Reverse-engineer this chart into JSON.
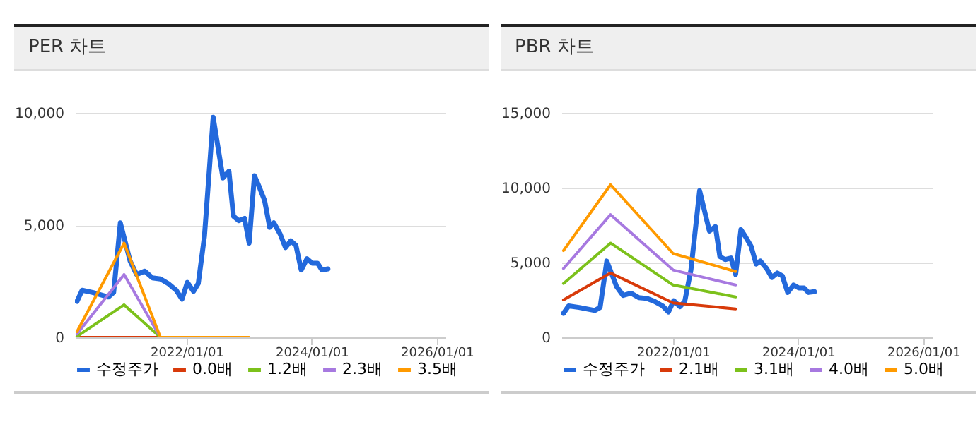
{
  "chart_data": [
    {
      "type": "line",
      "title": "PER 차트",
      "grid": "y",
      "legend": "bottom",
      "xlim": [
        "2020-03-20",
        "2026-02-20"
      ],
      "ylim": [
        0,
        10000
      ],
      "xticks": [
        {
          "value": "2022-01-01",
          "label": "2022/01/01"
        },
        {
          "value": "2024-01-01",
          "label": "2024/01/01"
        },
        {
          "value": "2026-01-01",
          "label": "2026/01/01"
        }
      ],
      "yticks": [
        {
          "value": 0,
          "label": "0"
        },
        {
          "value": 5000,
          "label": "5,000"
        },
        {
          "value": 10000,
          "label": "10,000"
        }
      ],
      "series": [
        {
          "name": "수정주가",
          "color": "#2369dc",
          "x": [
            "2020-04-01",
            "2020-05-01",
            "2020-07-01",
            "2020-10-01",
            "2020-11-01",
            "2020-12-10",
            "2021-02-05",
            "2021-03-15",
            "2021-05-01",
            "2021-06-15",
            "2021-08-01",
            "2021-09-15",
            "2021-11-01",
            "2021-12-05",
            "2022-01-05",
            "2022-02-10",
            "2022-03-10",
            "2022-04-15",
            "2022-06-05",
            "2022-08-01",
            "2022-09-05",
            "2022-10-01",
            "2022-11-01",
            "2022-12-05",
            "2023-01-01",
            "2023-02-01",
            "2023-03-01",
            "2023-04-01",
            "2023-05-01",
            "2023-05-25",
            "2023-07-01",
            "2023-08-01",
            "2023-09-01",
            "2023-10-01",
            "2023-11-01",
            "2023-12-05",
            "2024-01-05",
            "2024-02-05",
            "2024-03-01",
            "2024-04-05"
          ],
          "values": [
            1600,
            2100,
            2000,
            1800,
            2000,
            5100,
            3400,
            2800,
            2950,
            2650,
            2600,
            2400,
            2100,
            1700,
            2450,
            2050,
            2400,
            4500,
            9800,
            7100,
            7400,
            5400,
            5200,
            5300,
            4200,
            7200,
            6700,
            6100,
            4900,
            5100,
            4600,
            4000,
            4300,
            4100,
            3000,
            3500,
            3300,
            3300,
            3000,
            3050
          ]
        },
        {
          "name": "0.0배",
          "color": "#d83a0a",
          "x": [
            "2020-04-01",
            "2021-01-01",
            "2021-08-01"
          ],
          "values": [
            0,
            0,
            0
          ]
        },
        {
          "name": "1.2배",
          "color": "#7cc11b",
          "x": [
            "2020-04-01",
            "2021-01-01",
            "2021-08-01"
          ],
          "values": [
            40,
            1450,
            0
          ]
        },
        {
          "name": "2.3배",
          "color": "#a779e0",
          "x": [
            "2020-04-01",
            "2021-01-01",
            "2021-08-01"
          ],
          "values": [
            150,
            2800,
            0
          ]
        },
        {
          "name": "3.5배",
          "color": "#ff9a00",
          "x": [
            "2020-04-01",
            "2021-01-01",
            "2021-08-01",
            "2023-01-01"
          ],
          "values": [
            250,
            4200,
            0,
            0
          ]
        }
      ]
    },
    {
      "type": "line",
      "title": "PBR 차트",
      "grid": "y",
      "legend": "bottom",
      "xlim": [
        "2020-03-20",
        "2026-02-20"
      ],
      "ylim": [
        0,
        15000
      ],
      "xticks": [
        {
          "value": "2022-01-01",
          "label": "2022/01/01"
        },
        {
          "value": "2024-01-01",
          "label": "2024/01/01"
        },
        {
          "value": "2026-01-01",
          "label": "2026/01/01"
        }
      ],
      "yticks": [
        {
          "value": 0,
          "label": "0"
        },
        {
          "value": 5000,
          "label": "5,000"
        },
        {
          "value": 10000,
          "label": "10,000"
        },
        {
          "value": 15000,
          "label": "15,000"
        }
      ],
      "series": [
        {
          "name": "수정주가",
          "color": "#2369dc",
          "x": [
            "2020-04-01",
            "2020-05-01",
            "2020-07-01",
            "2020-10-01",
            "2020-11-01",
            "2020-12-10",
            "2021-02-05",
            "2021-03-15",
            "2021-05-01",
            "2021-06-15",
            "2021-08-01",
            "2021-09-15",
            "2021-11-01",
            "2021-12-05",
            "2022-01-05",
            "2022-02-10",
            "2022-03-10",
            "2022-04-15",
            "2022-06-05",
            "2022-08-01",
            "2022-09-05",
            "2022-10-01",
            "2022-11-01",
            "2022-12-05",
            "2023-01-01",
            "2023-02-01",
            "2023-03-01",
            "2023-04-01",
            "2023-05-01",
            "2023-05-25",
            "2023-07-01",
            "2023-08-01",
            "2023-09-01",
            "2023-10-01",
            "2023-11-01",
            "2023-12-05",
            "2024-01-05",
            "2024-02-05",
            "2024-03-01",
            "2024-04-05"
          ],
          "values": [
            1600,
            2100,
            2000,
            1800,
            2000,
            5100,
            3400,
            2800,
            2950,
            2650,
            2600,
            2400,
            2100,
            1700,
            2450,
            2050,
            2400,
            4500,
            9800,
            7100,
            7400,
            5400,
            5200,
            5300,
            4200,
            7200,
            6700,
            6100,
            4900,
            5100,
            4600,
            4000,
            4300,
            4100,
            3000,
            3500,
            3300,
            3300,
            3000,
            3050
          ]
        },
        {
          "name": "2.1배",
          "color": "#d83a0a",
          "x": [
            "2020-04-01",
            "2021-01-01",
            "2022-01-01",
            "2023-01-01"
          ],
          "values": [
            2500,
            4300,
            2300,
            1900
          ]
        },
        {
          "name": "3.1배",
          "color": "#7cc11b",
          "x": [
            "2020-04-01",
            "2021-01-01",
            "2022-01-01",
            "2023-01-01"
          ],
          "values": [
            3600,
            6300,
            3500,
            2700
          ]
        },
        {
          "name": "4.0배",
          "color": "#a779e0",
          "x": [
            "2020-04-01",
            "2021-01-01",
            "2022-01-01",
            "2023-01-01"
          ],
          "values": [
            4600,
            8200,
            4500,
            3500
          ]
        },
        {
          "name": "5.0배",
          "color": "#ff9a00",
          "x": [
            "2020-04-01",
            "2021-01-01",
            "2022-01-01",
            "2023-01-01"
          ],
          "values": [
            5800,
            10200,
            5600,
            4400
          ]
        }
      ]
    }
  ]
}
